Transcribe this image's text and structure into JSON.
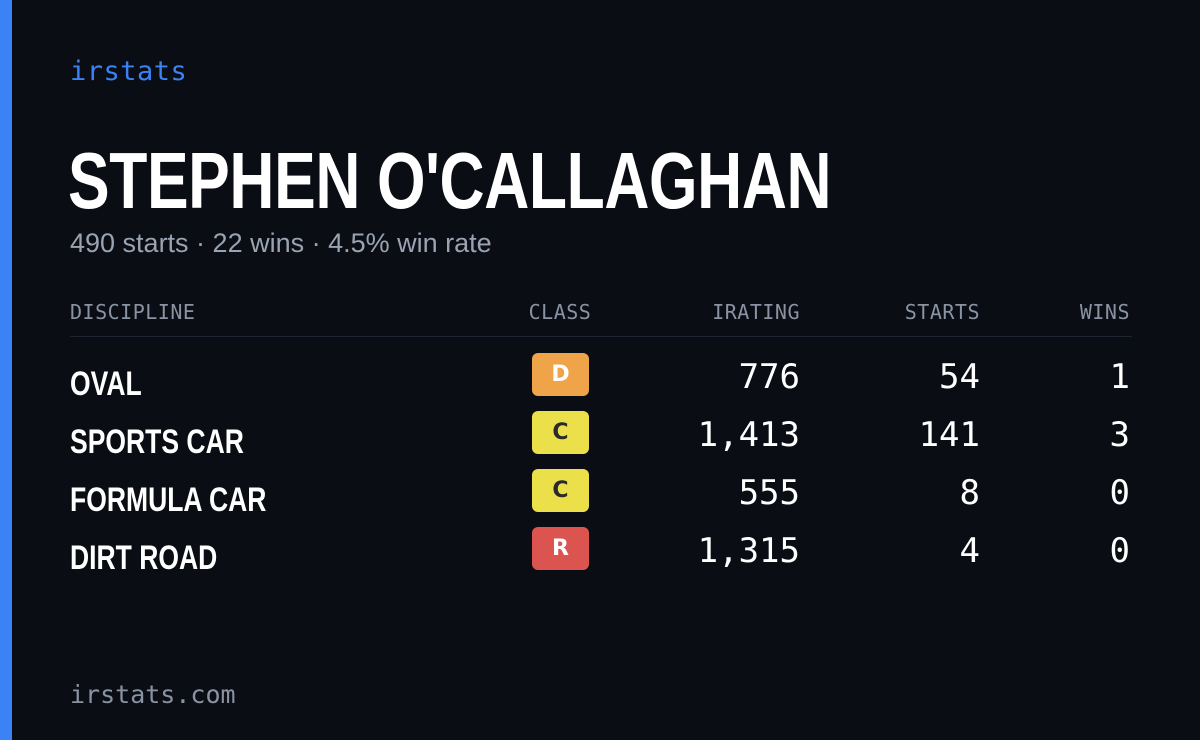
{
  "brand": "irstats",
  "driver_name": "STEPHEN O'CALLAGHAN",
  "summary": "490 starts · 22 wins · 4.5% win rate",
  "table": {
    "headers": {
      "discipline": "DISCIPLINE",
      "class": "CLASS",
      "irating": "IRATING",
      "starts": "STARTS",
      "wins": "WINS"
    },
    "rows": [
      {
        "discipline": "OVAL",
        "class": "D",
        "class_color": "#f0a44a",
        "class_text_color": "#ffffff",
        "irating": "776",
        "starts": "54",
        "wins": "1"
      },
      {
        "discipline": "SPORTS CAR",
        "class": "C",
        "class_color": "#ece04a",
        "class_text_color": "#2a2a2a",
        "irating": "1,413",
        "starts": "141",
        "wins": "3"
      },
      {
        "discipline": "FORMULA CAR",
        "class": "C",
        "class_color": "#ece04a",
        "class_text_color": "#2a2a2a",
        "irating": "555",
        "starts": "8",
        "wins": "0"
      },
      {
        "discipline": "DIRT ROAD",
        "class": "R",
        "class_color": "#dc5450",
        "class_text_color": "#ffffff",
        "irating": "1,315",
        "starts": "4",
        "wins": "0"
      }
    ]
  },
  "footer": "irstats.com",
  "colors": {
    "accent": "#3b82f6",
    "background": "#0a0d14"
  }
}
